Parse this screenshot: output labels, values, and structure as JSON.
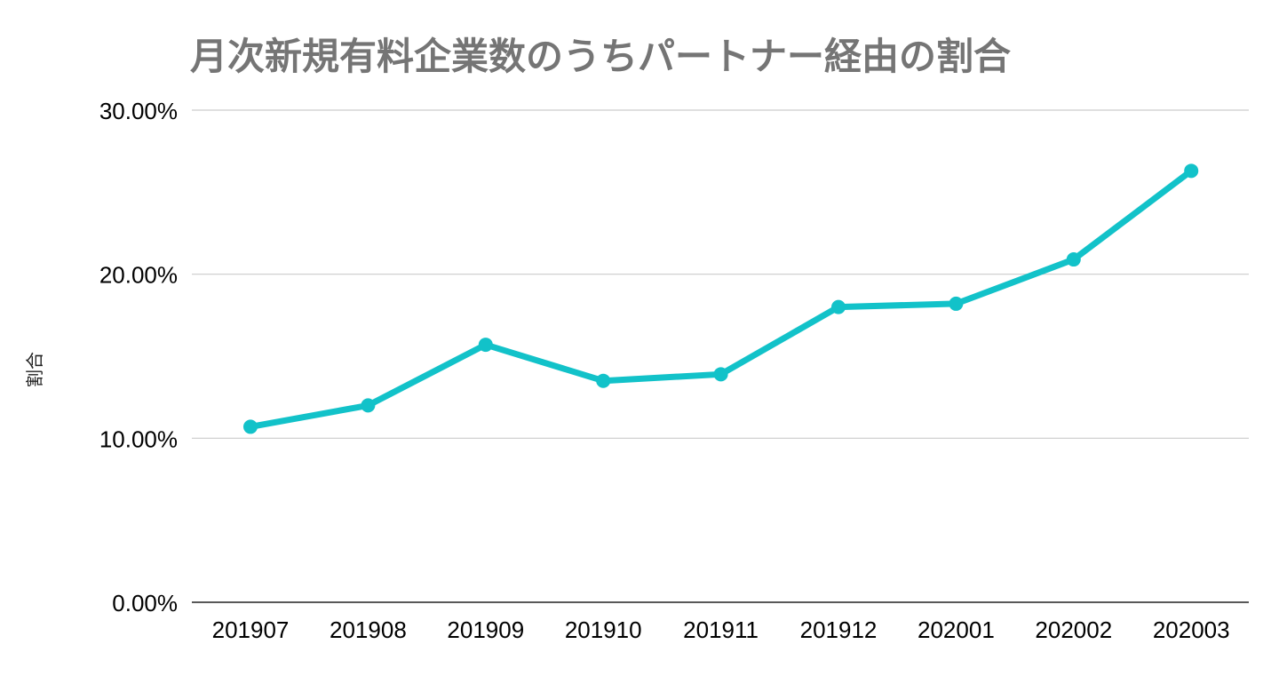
{
  "chart_data": {
    "type": "line",
    "title": "月次新規有料企業数のうちパートナー経由の割合",
    "xlabel": "",
    "ylabel": "割合",
    "categories": [
      "201907",
      "201908",
      "201909",
      "201910",
      "201911",
      "201912",
      "202001",
      "202002",
      "202003"
    ],
    "series": [
      {
        "values": [
          10.7,
          12.0,
          15.7,
          13.5,
          13.9,
          18.0,
          18.2,
          20.9,
          26.3
        ]
      }
    ],
    "ylim": [
      0,
      30
    ],
    "yticks": [
      0,
      10,
      20,
      30
    ],
    "ytick_labels": [
      "0.00%",
      "10.00%",
      "20.00%",
      "30.00%"
    ],
    "grid": true,
    "legend": "none",
    "colors": {
      "line": "#12c2c9",
      "gridline": "#cccccc",
      "axis": "#222222",
      "title": "#757575"
    }
  }
}
